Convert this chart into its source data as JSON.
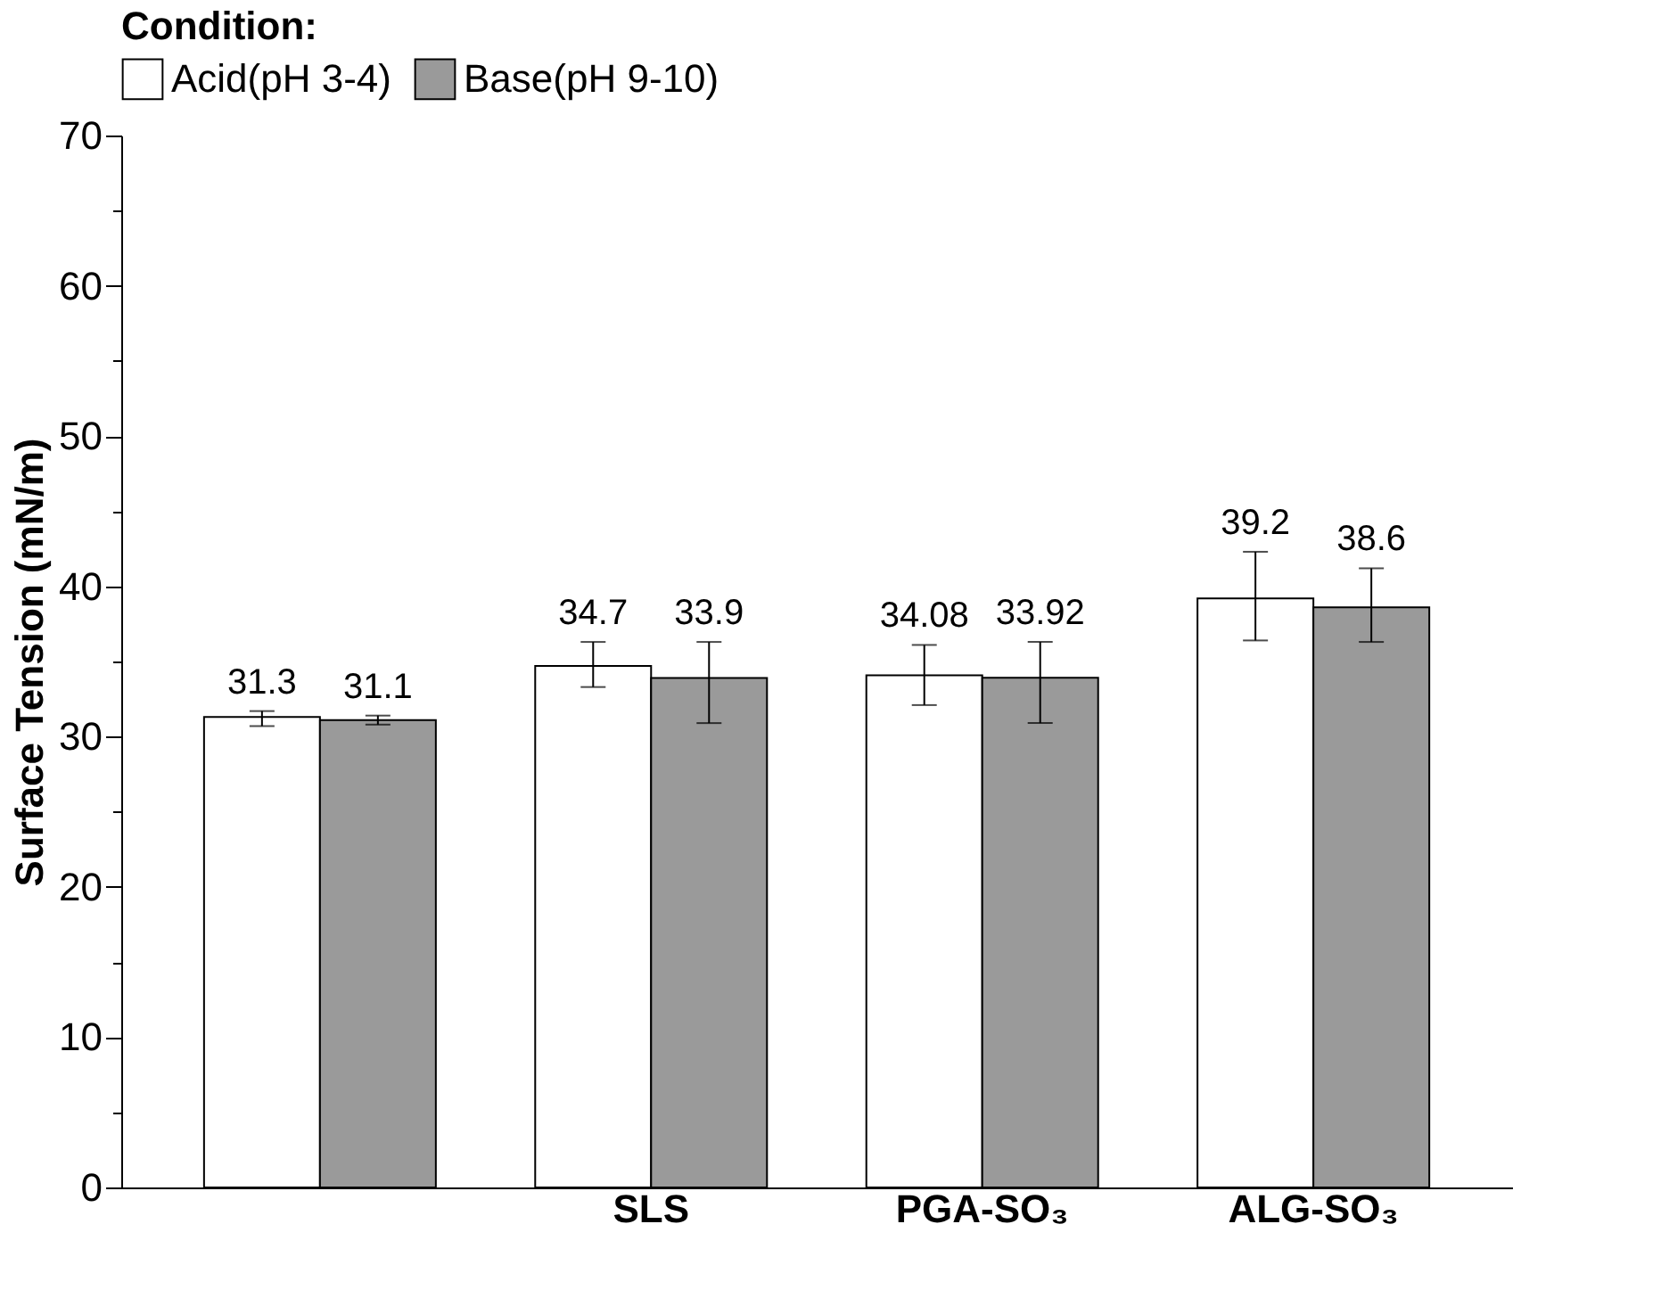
{
  "chart_data": {
    "type": "bar",
    "categories": [
      null,
      "SLS",
      "PGA-SO₃",
      "ALG-SO₃"
    ],
    "ylabel": "Surface Tension (mN/m)",
    "legend_title": "Condition:",
    "series": [
      {
        "name": "Acid(pH 3-4)",
        "color": "#ffffff",
        "values": [
          31.3,
          34.7,
          34.08,
          39.2
        ],
        "errors": [
          [
            30.7,
            31.7
          ],
          [
            33.3,
            36.3
          ],
          [
            32.1,
            36.1
          ],
          [
            36.4,
            42.3
          ]
        ]
      },
      {
        "name": "Base(pH 9-10)",
        "color": "#9a9a9a",
        "values": [
          31.1,
          33.9,
          33.92,
          38.6
        ],
        "errors": [
          [
            30.8,
            31.4
          ],
          [
            30.9,
            36.3
          ],
          [
            30.9,
            36.3
          ],
          [
            36.3,
            41.2
          ]
        ]
      }
    ],
    "ylim": [
      0,
      70
    ],
    "yticks": [
      0,
      {
        "value": 5,
        "label": null
      },
      10,
      {
        "value": 15,
        "label": null
      },
      20,
      {
        "value": 25,
        "label": null
      },
      30,
      {
        "value": 35,
        "label": null
      },
      40,
      {
        "value": 45,
        "label": null
      },
      50,
      {
        "value": 55,
        "label": null
      },
      60,
      {
        "value": 65,
        "label": null
      },
      70
    ],
    "data_labels": true,
    "grid": false,
    "legend": "top"
  }
}
